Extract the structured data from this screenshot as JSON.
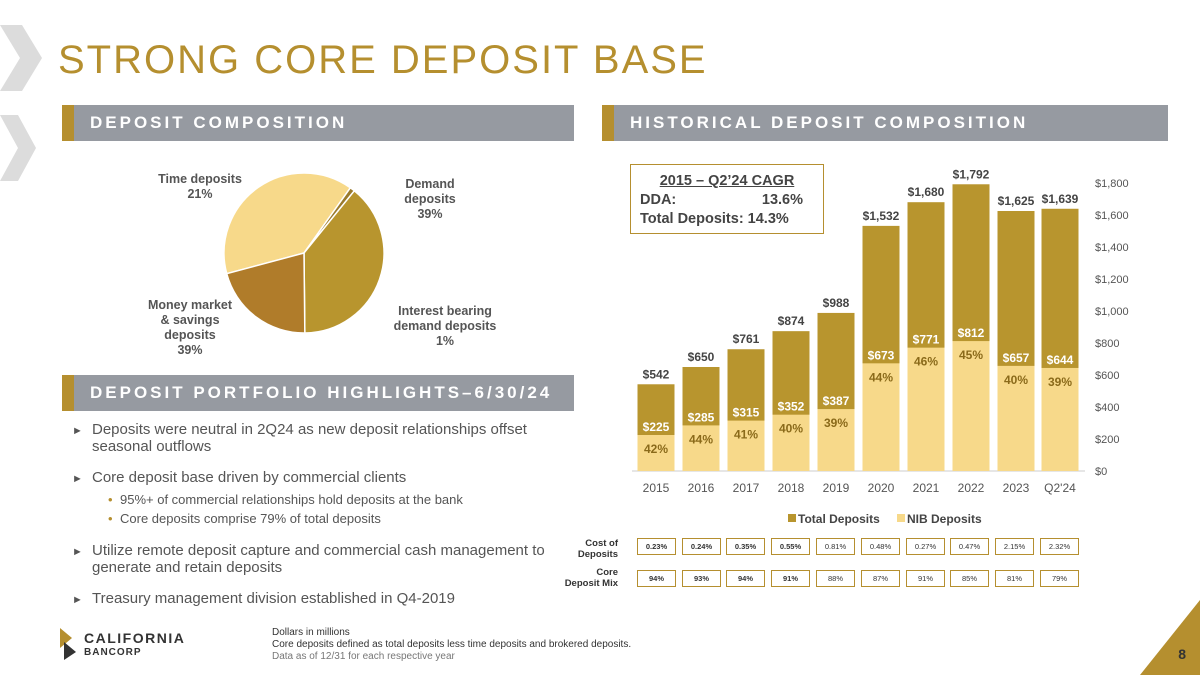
{
  "title": "STRONG CORE DEPOSIT BASE",
  "sections": {
    "composition": "DEPOSIT COMPOSITION",
    "historical": "HISTORICAL DEPOSIT COMPOSITION",
    "highlights": "DEPOSIT PORTFOLIO HIGHLIGHTS–6/30/24"
  },
  "colors": {
    "gold": "#b58f2f",
    "dark_gold": "#b07c2a",
    "light_gold": "#f7d98a",
    "medium_gold": "#b8952e",
    "bar_header": "#969aa1"
  },
  "chart_data": [
    {
      "type": "pie",
      "slices": [
        {
          "label_line1": "Demand",
          "label_line2": "deposits",
          "label_pct": "39%",
          "value": 39,
          "color": "#f7d98a"
        },
        {
          "label_line1": "Interest bearing",
          "label_line2": "demand deposits",
          "label_pct": "1%",
          "value": 1,
          "color": "#9a7a2c"
        },
        {
          "label_line1": "Money market",
          "label_line2": "& savings",
          "label_line3": "deposits",
          "label_pct": "39%",
          "value": 39,
          "color": "#b8952e"
        },
        {
          "label_line1": "Time deposits",
          "label_pct": "21%",
          "value": 21,
          "color": "#b07c2a"
        }
      ]
    },
    {
      "type": "bar",
      "categories": [
        "2015",
        "2016",
        "2017",
        "2018",
        "2019",
        "2020",
        "2021",
        "2022",
        "2023",
        "Q2'24"
      ],
      "series": [
        {
          "name": "Total Deposits",
          "values": [
            542,
            650,
            761,
            874,
            988,
            1532,
            1680,
            1792,
            1625,
            1639
          ],
          "labels": [
            "$542",
            "$650",
            "$761",
            "$874",
            "$988",
            "$1,532",
            "$1,680",
            "$1,792",
            "$1,625",
            "$1,639"
          ],
          "color": "#b8952e"
        },
        {
          "name": "NIB Deposits",
          "values": [
            225,
            285,
            315,
            352,
            387,
            673,
            771,
            812,
            657,
            644
          ],
          "labels": [
            "$225",
            "$285",
            "$315",
            "$352",
            "$387",
            "$673",
            "$771",
            "$812",
            "$657",
            "$644"
          ],
          "pct_labels": [
            "42%",
            "44%",
            "41%",
            "40%",
            "39%",
            "44%",
            "46%",
            "45%",
            "40%",
            "39%"
          ],
          "color": "#f7d98a"
        }
      ],
      "ylim": [
        0,
        1800
      ],
      "yticks": [
        "$0",
        "$200",
        "$400",
        "$600",
        "$800",
        "$1,000",
        "$1,200",
        "$1,400",
        "$1,600",
        "$1,800"
      ],
      "ytick_values": [
        0,
        200,
        400,
        600,
        800,
        1000,
        1200,
        1400,
        1600,
        1800
      ],
      "legend_position": "bottom"
    }
  ],
  "cagr": {
    "heading": "2015 – Q2’24 CAGR",
    "dda_label": "DDA:",
    "dda_value": "13.6%",
    "total_label": "Total Deposits: 14.3%"
  },
  "metrics": {
    "cost_label_1": "Cost of",
    "cost_label_2": "Deposits",
    "cost_of_deposits": [
      "0.23%",
      "0.24%",
      "0.35%",
      "0.55%",
      "0.81%",
      "0.48%",
      "0.27%",
      "0.47%",
      "2.15%",
      "2.32%"
    ],
    "mix_label_1": "Core",
    "mix_label_2": "Deposit Mix",
    "core_deposit_mix": [
      "94%",
      "93%",
      "94%",
      "91%",
      "88%",
      "87%",
      "91%",
      "85%",
      "81%",
      "79%"
    ]
  },
  "highlights": {
    "b1": "Deposits were neutral in 2Q24 as new deposit relationships offset seasonal outflows",
    "b2": "Core deposit base driven by commercial clients",
    "b2a": "95%+ of commercial relationships hold deposits at the bank",
    "b2b": "Core deposits comprise 79% of total deposits",
    "b3": "Utilize remote deposit capture and commercial cash management to generate and retain deposits",
    "b4": "Treasury management division established in Q4-2019"
  },
  "footer": {
    "logo_name": "CALIFORNIA",
    "logo_sub": "BANCORP",
    "note1": "Dollars in millions",
    "note2": "Core deposits defined as total deposits less time deposits and brokered deposits.",
    "note3": "Data as of 12/31 for each respective year",
    "page": "8"
  }
}
